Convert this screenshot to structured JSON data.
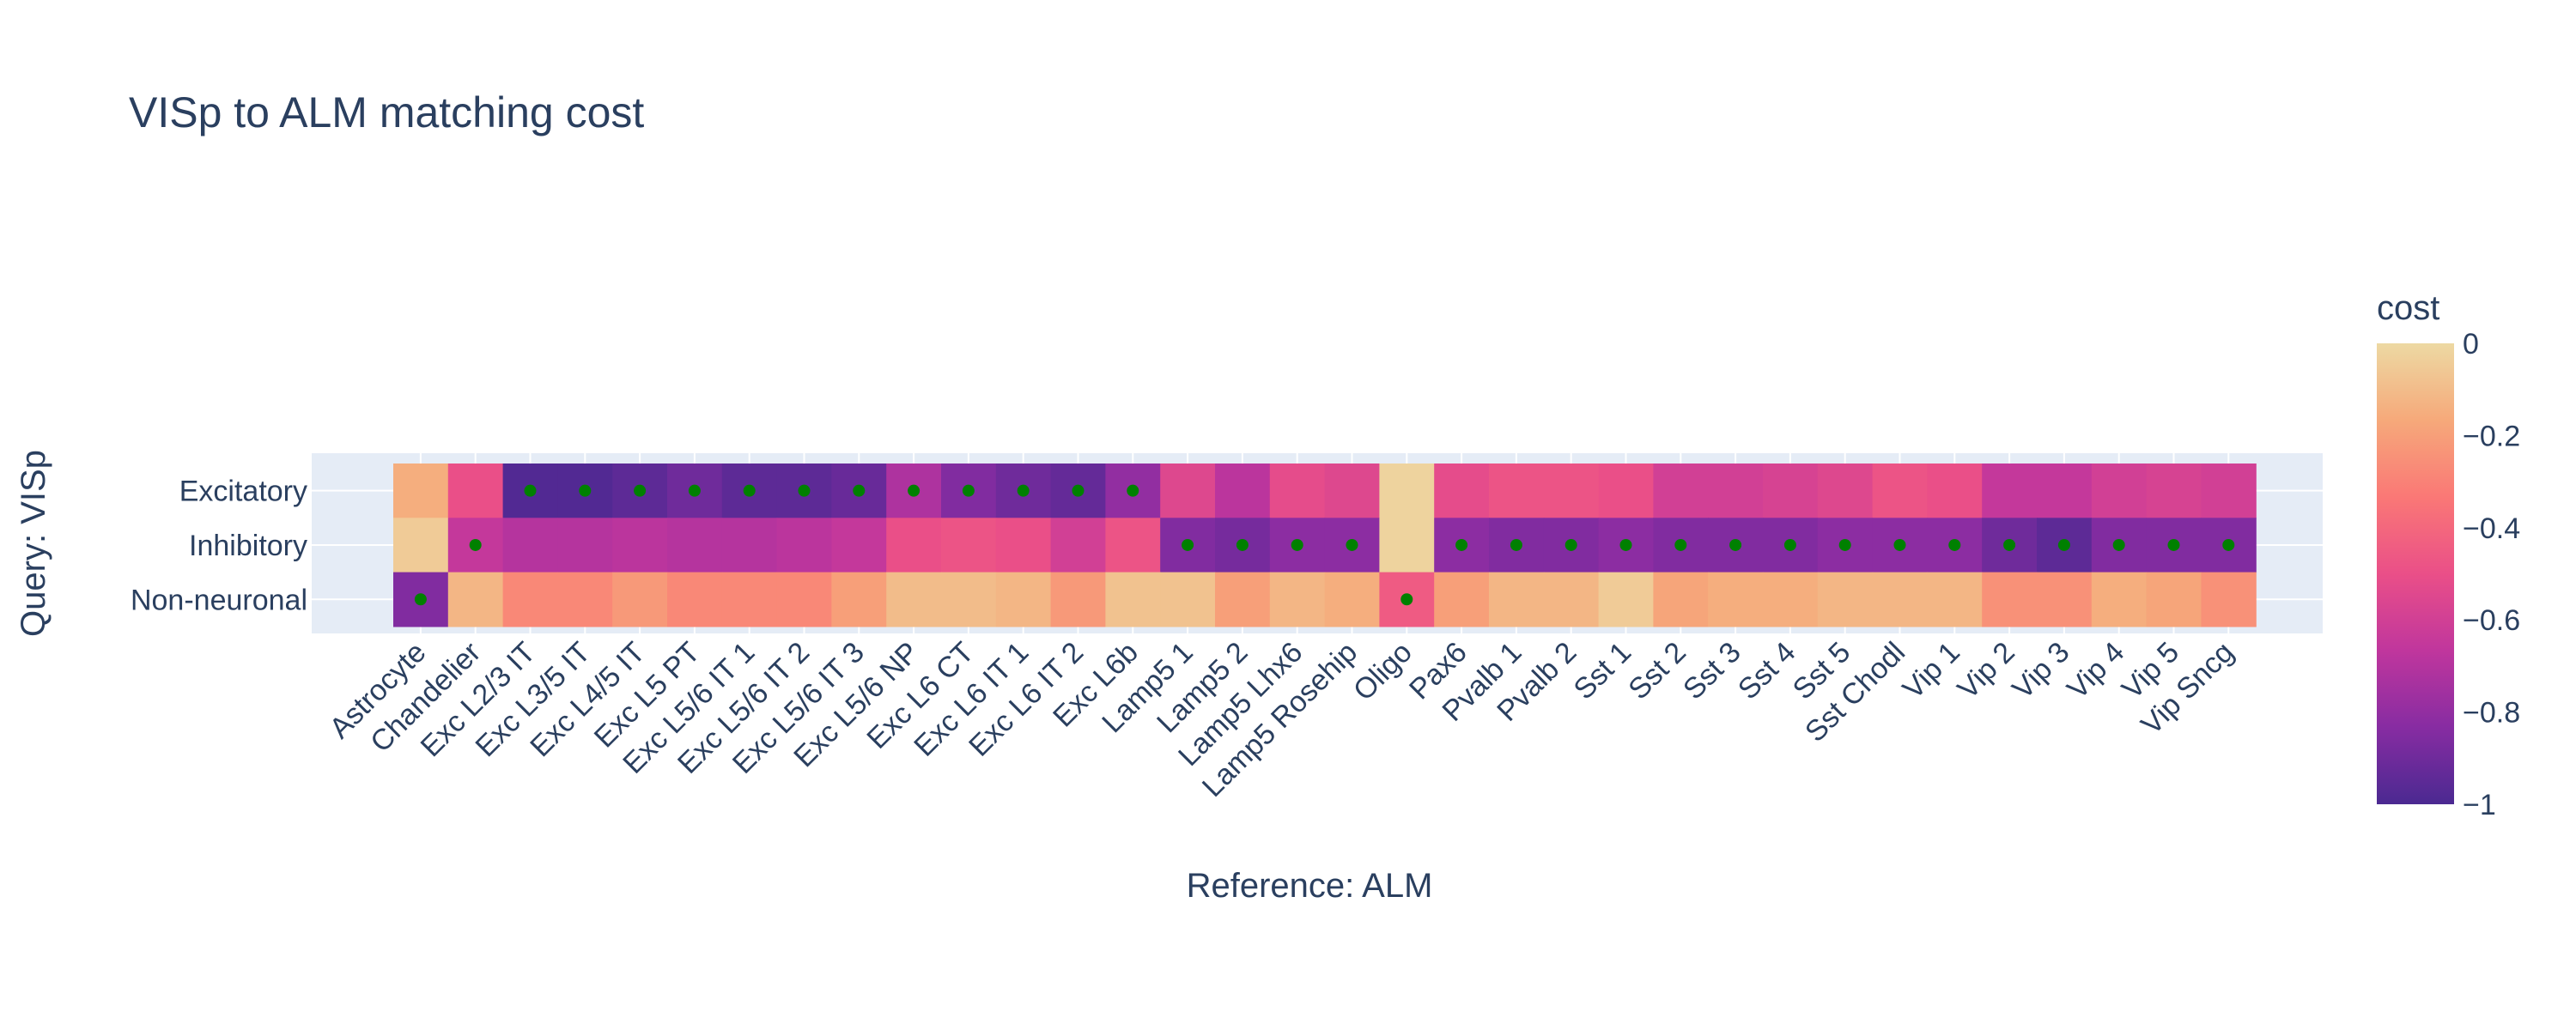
{
  "chart_data": {
    "type": "heatmap",
    "title": "VISp to ALM matching cost",
    "xlabel": "Reference: ALM",
    "ylabel": "Query: VISp",
    "x": [
      "Astrocyte",
      "Chandelier",
      "Exc L2/3 IT",
      "Exc L3/5 IT",
      "Exc L4/5 IT",
      "Exc L5 PT",
      "Exc L5/6 IT 1",
      "Exc L5/6 IT 2",
      "Exc L5/6 IT 3",
      "Exc L5/6 NP",
      "Exc L6 CT",
      "Exc L6 IT 1",
      "Exc L6 IT 2",
      "Exc L6b",
      "Lamp5 1",
      "Lamp5 2",
      "Lamp5 Lhx6",
      "Lamp5 Rosehip",
      "Oligo",
      "Pax6",
      "Pvalb 1",
      "Pvalb 2",
      "Sst 1",
      "Sst 2",
      "Sst 3",
      "Sst 4",
      "Sst 5",
      "Sst Chodl",
      "Vip 1",
      "Vip 2",
      "Vip 3",
      "Vip 4",
      "Vip 5",
      "Vip Sncg"
    ],
    "y": [
      "Excitatory",
      "Inhibitory",
      "Non-neuronal"
    ],
    "z": [
      [
        -0.15,
        -0.5,
        -0.98,
        -0.98,
        -0.95,
        -0.9,
        -0.95,
        -0.95,
        -0.92,
        -0.72,
        -0.85,
        -0.9,
        -0.93,
        -0.8,
        -0.55,
        -0.68,
        -0.52,
        -0.55,
        -0.02,
        -0.52,
        -0.48,
        -0.48,
        -0.5,
        -0.6,
        -0.6,
        -0.58,
        -0.55,
        -0.48,
        -0.5,
        -0.65,
        -0.65,
        -0.6,
        -0.58,
        -0.6
      ],
      [
        -0.05,
        -0.65,
        -0.7,
        -0.7,
        -0.68,
        -0.7,
        -0.7,
        -0.68,
        -0.65,
        -0.5,
        -0.48,
        -0.5,
        -0.6,
        -0.48,
        -0.85,
        -0.88,
        -0.82,
        -0.82,
        -0.02,
        -0.82,
        -0.85,
        -0.85,
        -0.82,
        -0.85,
        -0.85,
        -0.85,
        -0.82,
        -0.82,
        -0.82,
        -0.9,
        -0.95,
        -0.85,
        -0.85,
        -0.85
      ],
      [
        -0.85,
        -0.12,
        -0.28,
        -0.28,
        -0.22,
        -0.28,
        -0.28,
        -0.28,
        -0.2,
        -0.1,
        -0.1,
        -0.12,
        -0.22,
        -0.08,
        -0.08,
        -0.2,
        -0.12,
        -0.15,
        -0.45,
        -0.2,
        -0.12,
        -0.12,
        -0.05,
        -0.18,
        -0.15,
        -0.15,
        -0.12,
        -0.12,
        -0.12,
        -0.25,
        -0.25,
        -0.15,
        -0.18,
        -0.25
      ]
    ],
    "markers": [
      {
        "x": "Exc L2/3 IT",
        "y": "Excitatory"
      },
      {
        "x": "Exc L3/5 IT",
        "y": "Excitatory"
      },
      {
        "x": "Exc L4/5 IT",
        "y": "Excitatory"
      },
      {
        "x": "Exc L5 PT",
        "y": "Excitatory"
      },
      {
        "x": "Exc L5/6 IT 1",
        "y": "Excitatory"
      },
      {
        "x": "Exc L5/6 IT 2",
        "y": "Excitatory"
      },
      {
        "x": "Exc L5/6 IT 3",
        "y": "Excitatory"
      },
      {
        "x": "Exc L5/6 NP",
        "y": "Excitatory"
      },
      {
        "x": "Exc L6 CT",
        "y": "Excitatory"
      },
      {
        "x": "Exc L6 IT 1",
        "y": "Excitatory"
      },
      {
        "x": "Exc L6 IT 2",
        "y": "Excitatory"
      },
      {
        "x": "Exc L6b",
        "y": "Excitatory"
      },
      {
        "x": "Chandelier",
        "y": "Inhibitory"
      },
      {
        "x": "Lamp5 1",
        "y": "Inhibitory"
      },
      {
        "x": "Lamp5 2",
        "y": "Inhibitory"
      },
      {
        "x": "Lamp5 Lhx6",
        "y": "Inhibitory"
      },
      {
        "x": "Lamp5 Rosehip",
        "y": "Inhibitory"
      },
      {
        "x": "Pax6",
        "y": "Inhibitory"
      },
      {
        "x": "Pvalb 1",
        "y": "Inhibitory"
      },
      {
        "x": "Pvalb 2",
        "y": "Inhibitory"
      },
      {
        "x": "Sst 1",
        "y": "Inhibitory"
      },
      {
        "x": "Sst 2",
        "y": "Inhibitory"
      },
      {
        "x": "Sst 3",
        "y": "Inhibitory"
      },
      {
        "x": "Sst 4",
        "y": "Inhibitory"
      },
      {
        "x": "Sst 5",
        "y": "Inhibitory"
      },
      {
        "x": "Sst Chodl",
        "y": "Inhibitory"
      },
      {
        "x": "Vip 1",
        "y": "Inhibitory"
      },
      {
        "x": "Vip 2",
        "y": "Inhibitory"
      },
      {
        "x": "Vip 3",
        "y": "Inhibitory"
      },
      {
        "x": "Vip 4",
        "y": "Inhibitory"
      },
      {
        "x": "Vip 5",
        "y": "Inhibitory"
      },
      {
        "x": "Vip Sncg",
        "y": "Inhibitory"
      },
      {
        "x": "Astrocyte",
        "y": "Non-neuronal"
      },
      {
        "x": "Oligo",
        "y": "Non-neuronal"
      }
    ],
    "marker_color": "#008000",
    "colorbar": {
      "title": "cost",
      "range": [
        -1,
        0
      ],
      "ticks": [
        0,
        -0.2,
        -0.4,
        -0.6,
        -0.8,
        -1
      ],
      "tick_labels": [
        "0",
        "−0.2",
        "−0.4",
        "−0.6",
        "−0.8",
        "−1"
      ],
      "colorscale": [
        "#4b2991",
        "#872ca2",
        "#c0369d",
        "#ea4f88",
        "#fa7876",
        "#f6a97a",
        "#edd9a3"
      ]
    },
    "plot_bg": "#e5ecf6",
    "grid": true
  }
}
